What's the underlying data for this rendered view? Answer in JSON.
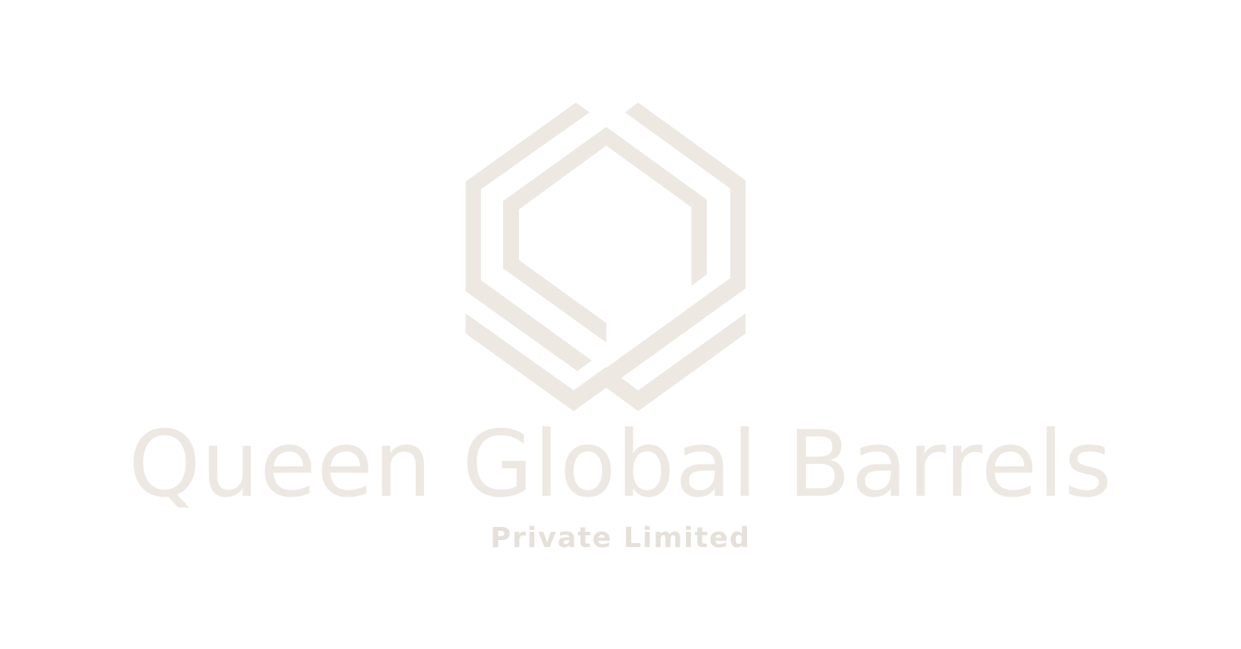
{
  "brand": {
    "name": "Queen Global Barrels",
    "tagline": "Private Limited",
    "logo_icon": "hexagon-interlock-icon"
  },
  "colors": {
    "background": "#ffffff",
    "logo": "#ede8e2",
    "name": "#ede8e2",
    "tagline": "#e5e0da"
  }
}
